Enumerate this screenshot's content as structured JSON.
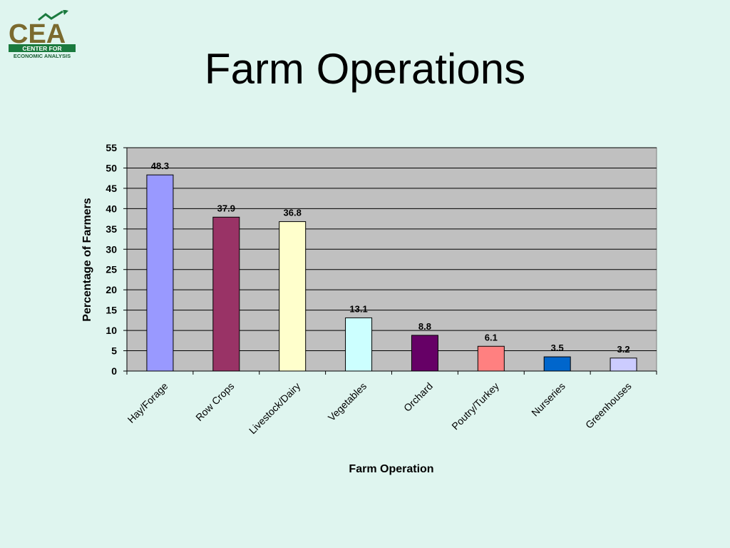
{
  "page": {
    "background": "#dff5ef"
  },
  "logo": {
    "letters": "CEA",
    "line1": "CENTER FOR",
    "line2": "ECONOMIC ANALYSIS",
    "colors": {
      "letters": "#7b6a2e",
      "band": "#1a7a3e",
      "arrow": "#1a7a3e"
    }
  },
  "chart_data": {
    "type": "bar",
    "title": "Farm Operations",
    "xlabel": "Farm Operation",
    "ylabel": "Percentage of Farmers",
    "categories": [
      "Hay/Forage",
      "Row Crops",
      "Livestock/Dairy",
      "Vegetables",
      "Orchard",
      "Poutry/Turkey",
      "Nurseries",
      "Greenhouses"
    ],
    "values": [
      48.3,
      37.9,
      36.8,
      13.1,
      8.8,
      6.1,
      3.5,
      3.2
    ],
    "value_labels": [
      "48.3",
      "37.9",
      "36.8",
      "13.1",
      "8.8",
      "6.1",
      "3.5",
      "3.2"
    ],
    "bar_colors": [
      "#9999ff",
      "#993366",
      "#ffffcc",
      "#ccffff",
      "#660066",
      "#ff8080",
      "#0066cc",
      "#ccccff"
    ],
    "ylim": [
      0,
      55
    ],
    "yticks": [
      "0",
      "5",
      "10",
      "15",
      "20",
      "25",
      "30",
      "35",
      "40",
      "45",
      "50",
      "55"
    ],
    "grid": true,
    "plot_background": "#c0c0c0",
    "legend": "none"
  }
}
